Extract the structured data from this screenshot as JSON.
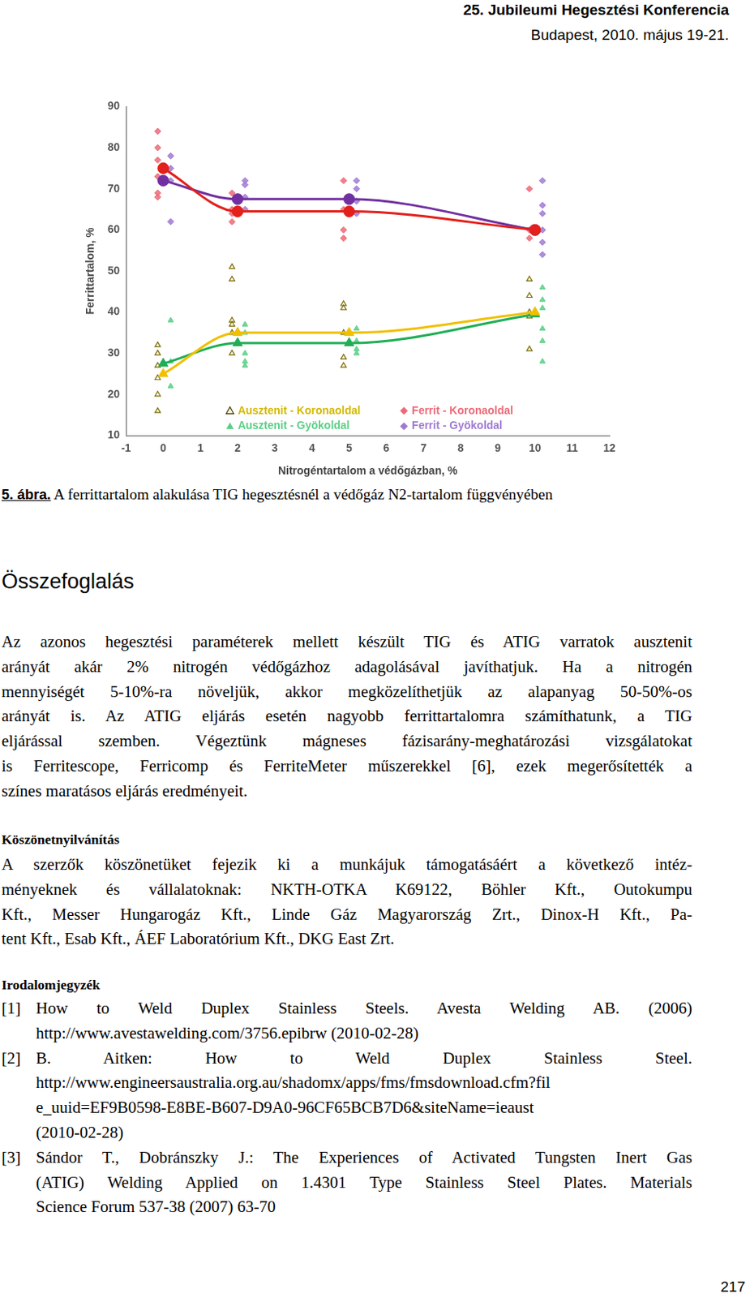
{
  "header": {
    "title": "25. Jubileumi Hegesztési Konferencia",
    "subtitle": "Budapest, 2010. május 19-21."
  },
  "chart_data": {
    "type": "scatter",
    "x_label": "Nitrogéntartalom a védőgázban, %",
    "y_label": "Ferrittartalom, %",
    "xlim": [
      -1,
      12
    ],
    "xticks": [
      -1,
      0,
      1,
      2,
      3,
      4,
      5,
      6,
      7,
      8,
      9,
      10,
      11,
      12
    ],
    "ylim": [
      10,
      90
    ],
    "yticks": [
      10,
      20,
      30,
      40,
      50,
      60,
      70,
      80,
      90
    ],
    "grid": false,
    "legend": "bottom",
    "series": [
      {
        "name": "Ausztenit - Koronaoldal",
        "color": "#d4b800",
        "marker": "triangle-open",
        "x": [
          -0.15,
          -0.15,
          -0.15,
          -0.15,
          -0.15,
          -0.15,
          1.85,
          1.85,
          1.85,
          1.85,
          1.85,
          1.85,
          4.85,
          4.85,
          4.85,
          4.85,
          4.85,
          9.85,
          9.85,
          9.85,
          9.85,
          9.85
        ],
        "values": [
          32,
          30,
          27,
          24,
          20,
          16,
          51,
          48,
          38,
          37,
          35,
          30,
          42,
          41,
          35,
          29,
          27,
          48,
          44,
          40,
          39,
          31
        ]
      },
      {
        "name": "Ausztenit - Gyökoldal",
        "color": "#5ccf86",
        "marker": "triangle",
        "x": [
          0.2,
          0.2,
          0.2,
          2.2,
          2.2,
          2.2,
          2.2,
          2.2,
          5.2,
          5.2,
          5.2,
          5.2,
          10.2,
          10.2,
          10.2,
          10.2,
          10.2,
          10.2
        ],
        "values": [
          38,
          28,
          22,
          37,
          35,
          30,
          28,
          27,
          36,
          33,
          31,
          30,
          46,
          43,
          41,
          36,
          33,
          28
        ]
      },
      {
        "name": "Ferrit - Koronaoldal",
        "color": "#ec6a78",
        "marker": "diamond",
        "x": [
          -0.15,
          -0.15,
          -0.15,
          -0.15,
          -0.15,
          -0.15,
          1.85,
          1.85,
          1.85,
          1.85,
          4.85,
          4.85,
          4.85,
          4.85,
          9.85,
          9.85,
          9.85
        ],
        "values": [
          84,
          80,
          77,
          73,
          69,
          68,
          69,
          65,
          64,
          62,
          72,
          65,
          60,
          58,
          70,
          60,
          58
        ]
      },
      {
        "name": "Ferrit - Gyökoldal",
        "color": "#a07ad2",
        "marker": "diamond",
        "x": [
          0.2,
          0.2,
          0.2,
          0.2,
          2.2,
          2.2,
          2.2,
          2.2,
          5.2,
          5.2,
          5.2,
          5.2,
          10.2,
          10.2,
          10.2,
          10.2,
          10.2,
          10.2
        ],
        "values": [
          78,
          75,
          72,
          62,
          72,
          71,
          68,
          65,
          72,
          70,
          67,
          64,
          72,
          66,
          64,
          60,
          57,
          54
        ]
      },
      {
        "type": "line",
        "color": "#f0c000",
        "marker": "triangle",
        "x": [
          0,
          2,
          5,
          10
        ],
        "values": [
          25,
          35,
          35,
          40
        ]
      },
      {
        "type": "line",
        "color": "#1fae55",
        "marker": "triangle",
        "x": [
          0,
          2,
          5,
          10
        ],
        "values": [
          27.5,
          32.5,
          32.5,
          39.5
        ]
      },
      {
        "type": "line",
        "color": "#e3201b",
        "marker": "circle",
        "x": [
          0,
          2,
          5,
          10
        ],
        "values": [
          75,
          64.5,
          64.5,
          60
        ]
      },
      {
        "type": "line",
        "color": "#7030a0",
        "marker": "circle",
        "x": [
          0,
          2,
          5,
          10
        ],
        "values": [
          72,
          67.5,
          67.5,
          60
        ]
      }
    ]
  },
  "caption": {
    "label": "5. ábra.",
    "text": " A ferrittartalom alakulása TIG hegesztésnél a védőgáz N2-tartalom függvényében"
  },
  "summary": {
    "heading": "Összefoglalás",
    "lines": [
      "Az azonos hegesztési paraméterek mellett készült TIG és ATIG varratok ausztenit",
      "arányát akár 2% nitrogén védőgázhoz adagolásával javíthatjuk. Ha a nitrogén",
      "mennyiségét 5-10%-ra növeljük, akkor megközelíthetjük az alapanyag 50-50%-os",
      "arányát is. Az ATIG eljárás esetén nagyobb ferrittartalomra számíthatunk, a TIG",
      "eljárással szemben. Végeztünk mágneses fázisarány-meghatározási vizsgálatokat",
      "is Ferritescope, Ferricomp és FerriteMeter műszerekkel [6], ezek megerősítették a",
      "színes maratásos eljárás eredményeit."
    ]
  },
  "acknowledgement": {
    "heading": "Köszönetnyilvánítás",
    "lines": [
      "A szerzők köszönetüket fejezik ki a munkájuk támogatásáért a következő intéz-",
      "ményeknek és vállalatoknak: NKTH-OTKA K69122, Böhler Kft., Outokumpu",
      "Kft., Messer Hungarogáz Kft., Linde Gáz Magyarország Zrt., Dinox-H Kft., Pa-",
      "tent Kft., Esab Kft., ÁEF Laboratórium Kft., DKG East Zrt."
    ]
  },
  "references": {
    "heading": "Irodalomjegyzék",
    "items": [
      {
        "label": "[1]",
        "lines": [
          "How to Weld Duplex Stainless Steels. Avesta Welding AB. (2006)",
          "http://www.avestawelding.com/3756.epibrw (2010-02-28)"
        ]
      },
      {
        "label": "[2]",
        "lines": [
          "B. Aitken: How to Weld Duplex Stainless Steel.",
          "http://www.engineersaustralia.org.au/shadomx/apps/fms/fmsdownload.cfm?fil",
          "e_uuid=EF9B0598-E8BE-B607-D9A0-96CF65BCB7D6&siteName=ieaust",
          "(2010-02-28)"
        ]
      },
      {
        "label": "[3]",
        "lines": [
          "Sándor T., Dobránszky J.: The Experiences of Activated Tungsten Inert Gas",
          "(ATIG) Welding Applied on 1.4301 Type Stainless Steel Plates. Materials",
          "Science Forum 537-38 (2007) 63-70"
        ]
      }
    ]
  },
  "page_number": 217
}
